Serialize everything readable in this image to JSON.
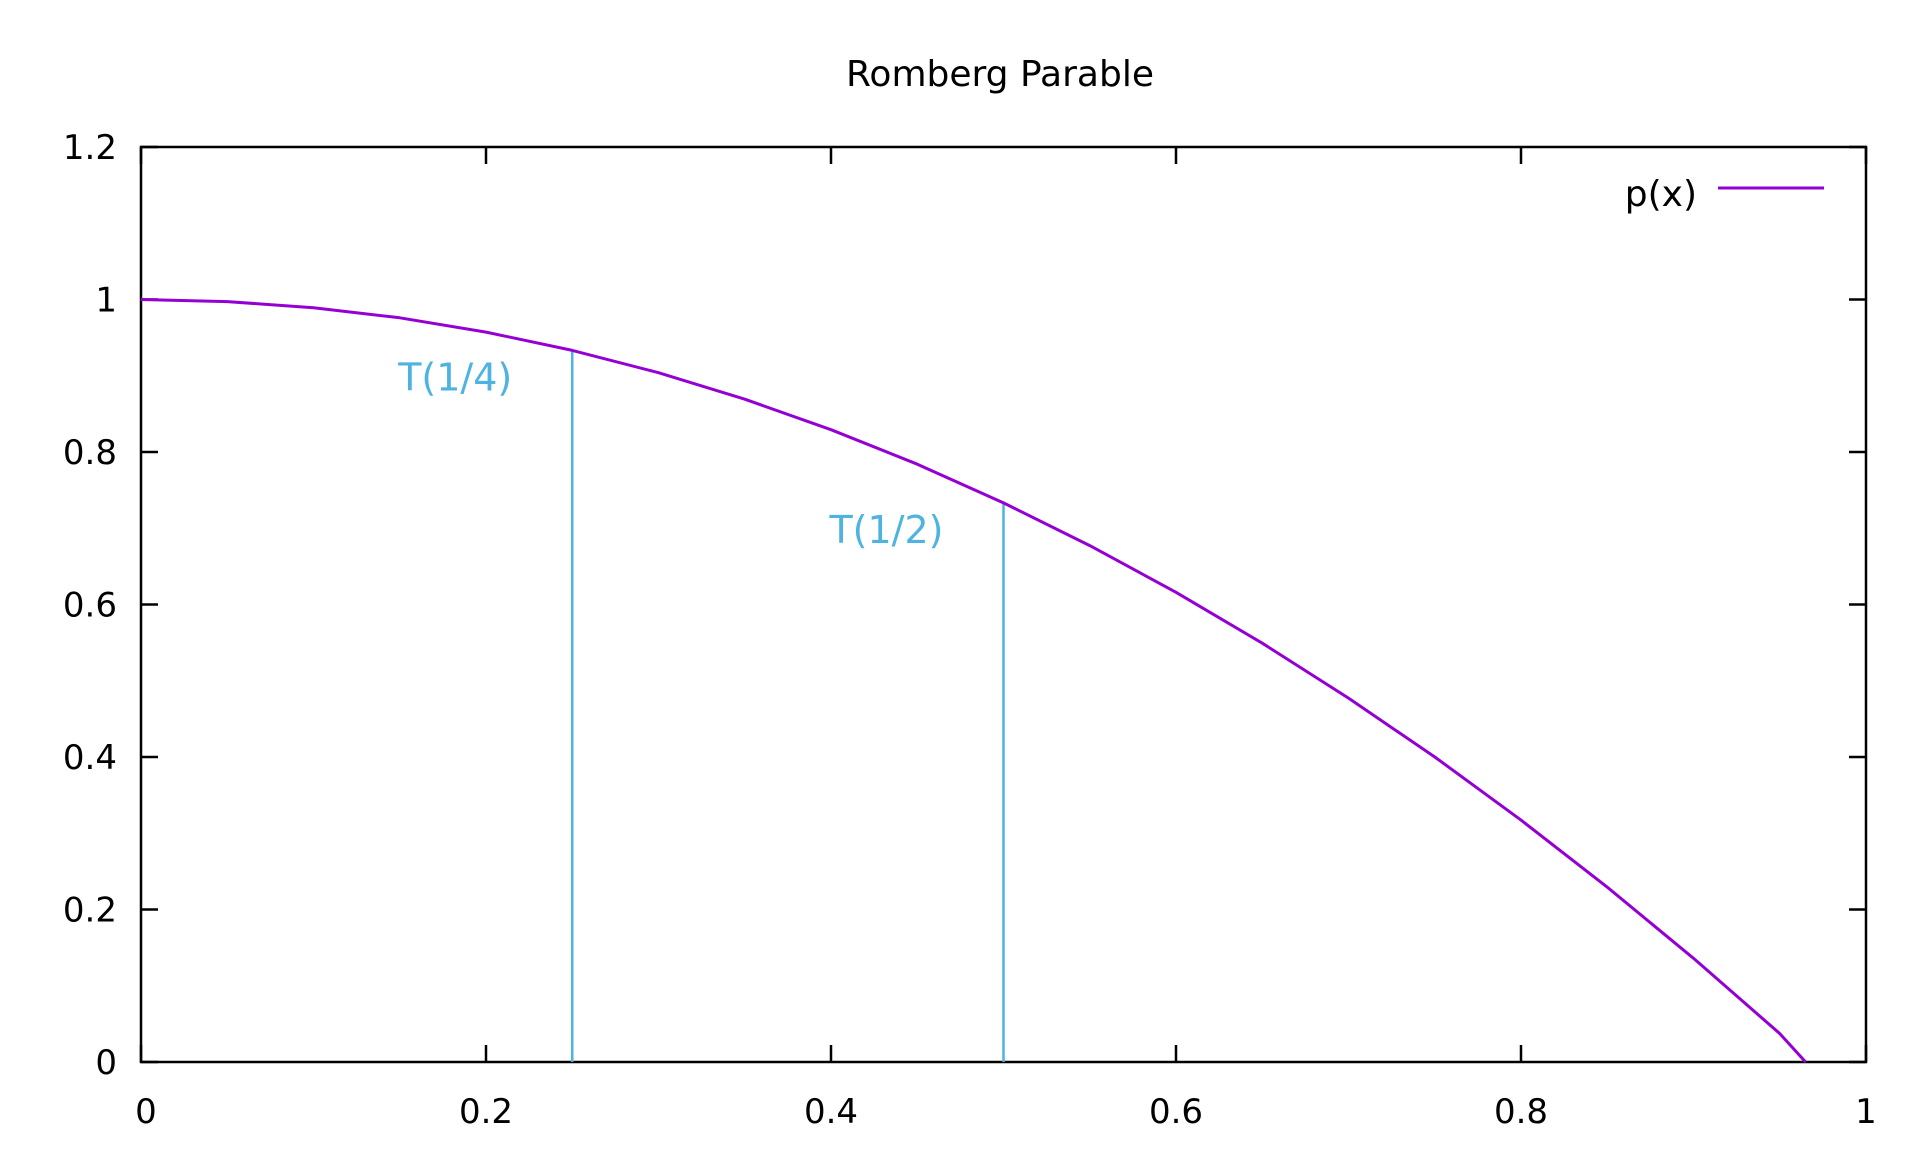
{
  "chart_data": {
    "type": "line",
    "title": "Romberg Parable",
    "xlabel": "",
    "ylabel": "",
    "xlim": [
      0,
      1
    ],
    "ylim": [
      0,
      1.2
    ],
    "x_ticks": [
      0,
      0.2,
      0.4,
      0.6,
      0.8,
      1
    ],
    "x_tick_labels": [
      "0",
      "0.2",
      "0.4",
      "0.6",
      "0.8",
      "1"
    ],
    "y_ticks": [
      0,
      0.2,
      0.4,
      0.6,
      0.8,
      1,
      1.2
    ],
    "y_tick_labels": [
      "0",
      "0.2",
      "0.4",
      "0.6",
      "0.8",
      "1",
      "1.2"
    ],
    "grid": false,
    "legend_position": "top-right",
    "series": [
      {
        "name": "p(x)",
        "color": "#9400d3",
        "x": [
          0,
          0.05,
          0.1,
          0.15,
          0.2,
          0.25,
          0.3,
          0.35,
          0.4,
          0.45,
          0.5,
          0.55,
          0.6,
          0.65,
          0.7,
          0.75,
          0.8,
          0.85,
          0.9,
          0.95,
          0.965
        ],
        "y": [
          1,
          0.9973,
          0.9893,
          0.976,
          0.9573,
          0.9333,
          0.904,
          0.8693,
          0.8293,
          0.784,
          0.7333,
          0.6773,
          0.616,
          0.5493,
          0.4773,
          0.4,
          0.3173,
          0.2293,
          0.136,
          0.0373,
          0
        ]
      }
    ],
    "annotations": [
      {
        "text": "T(1/4)",
        "x": 0.25,
        "y": 0.9333,
        "color": "#4eb3e0"
      },
      {
        "text": "T(1/2)",
        "x": 0.5,
        "y": 0.7333,
        "color": "#4eb3e0"
      }
    ]
  }
}
